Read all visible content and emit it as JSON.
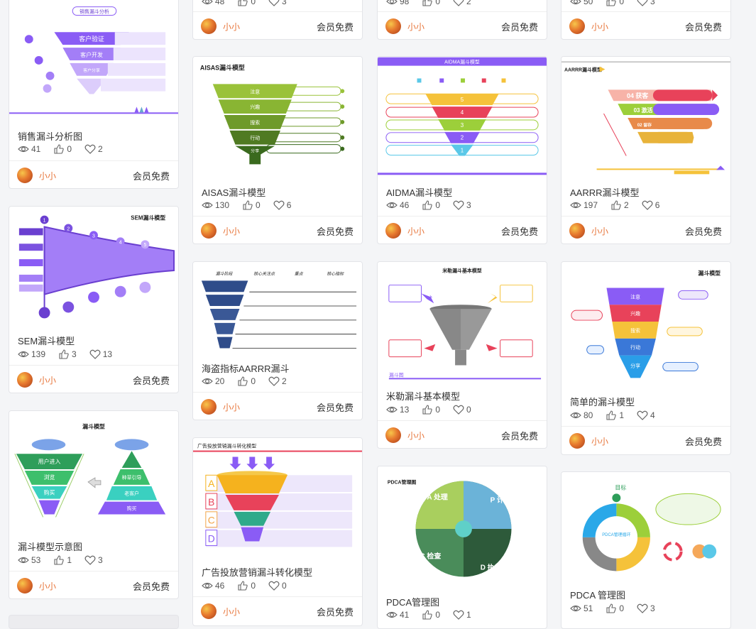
{
  "author": "小小",
  "free_label": "会员免费",
  "cards": [
    {
      "title": "销售漏斗分析图",
      "views": "41",
      "likes": "0",
      "favs": "2",
      "thumb_text": {
        "header": "销售漏斗分析",
        "l1": "客户验证",
        "l2": "客户开发",
        "l3": "客户分享"
      }
    },
    {
      "title": "",
      "views": "48",
      "likes": "0",
      "favs": "3"
    },
    {
      "title": "",
      "views": "98",
      "likes": "0",
      "favs": "2"
    },
    {
      "title": "",
      "views": "50",
      "likes": "0",
      "favs": "3"
    },
    {
      "title": "AISAS漏斗模型",
      "views": "130",
      "likes": "0",
      "favs": "6",
      "thumb_text": {
        "header": "AISAS漏斗模型",
        "l1": "注意",
        "l2": "兴趣",
        "l3": "搜索",
        "l4": "行动",
        "l5": "分享"
      }
    },
    {
      "title": "AIDMA漏斗模型",
      "views": "46",
      "likes": "0",
      "favs": "3",
      "thumb_text": {
        "header": "AIDMA漏斗模型",
        "n1": "5",
        "n2": "4",
        "n3": "3",
        "n4": "2",
        "n5": "1"
      }
    },
    {
      "title": "AARRR漏斗模型",
      "views": "197",
      "likes": "2",
      "favs": "6",
      "thumb_text": {
        "header": "AARRR漏斗模型",
        "l1": "04 获客",
        "l2": "03 激活",
        "l3": "02 留存"
      }
    },
    {
      "title": "SEM漏斗模型",
      "views": "139",
      "likes": "3",
      "favs": "13",
      "thumb_text": {
        "header": "SEM漏斗模型",
        "n1": "1",
        "n2": "2",
        "n3": "3",
        "n4": "4",
        "n5": "5"
      }
    },
    {
      "title": "海盗指标AARRR漏斗",
      "views": "20",
      "likes": "0",
      "favs": "2",
      "thumb_text": {
        "h1": "漏斗阶段",
        "h2": "核心关注点",
        "h3": "重点",
        "h4": "核心指标"
      }
    },
    {
      "title": "米勒漏斗基本模型",
      "views": "13",
      "likes": "0",
      "favs": "0",
      "thumb_text": {
        "header": "米勒漏斗基本模型",
        "foot": "漏斗图"
      }
    },
    {
      "title": "简单的漏斗模型",
      "views": "80",
      "likes": "1",
      "favs": "4",
      "thumb_text": {
        "header": "漏斗模型",
        "l1": "注意",
        "l2": "兴趣",
        "l3": "搜索",
        "l4": "行动",
        "l5": "分享"
      }
    },
    {
      "title": "漏斗模型示意图",
      "views": "53",
      "likes": "1",
      "favs": "3",
      "thumb_text": {
        "header": "漏斗模型",
        "l1": "用户进入",
        "l2": "浏览",
        "l3": "购买",
        "r1": "种草引导",
        "r2": "老客户",
        "r3": "购买"
      }
    },
    {
      "title": "广告投放营销漏斗转化模型",
      "views": "46",
      "likes": "0",
      "favs": "0",
      "thumb_text": {
        "header": "广告投放营销漏斗转化模型",
        "a": "A",
        "b": "B",
        "c": "C",
        "d": "D"
      }
    },
    {
      "title": "PDCA管理图",
      "views": "41",
      "likes": "0",
      "favs": "1",
      "thumb_text": {
        "header": "PDCA管理图",
        "p": "P 计划",
        "d": "D 执行",
        "c": "C 检查",
        "a": "A 处理"
      }
    },
    {
      "title": "PDCA 管理图",
      "views": "51",
      "likes": "0",
      "favs": "3",
      "thumb_text": {
        "target": "目标",
        "center": "PDCA管理循环"
      }
    }
  ],
  "colors": {
    "accent": "#8a5cf5",
    "author": "#e8753a"
  }
}
